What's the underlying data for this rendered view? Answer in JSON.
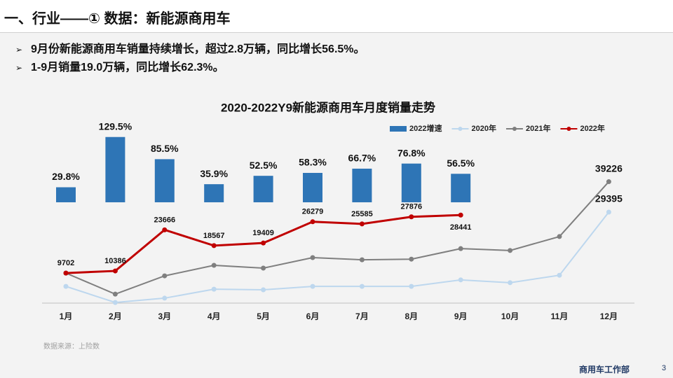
{
  "header": {
    "title": "一、行业——① 数据：新能源商用车"
  },
  "bullets": [
    "9月份新能源商用车销量持续增长，超过2.8万辆，同比增长56.5%。",
    "1-9月销量19.0万辆，同比增长62.3%。"
  ],
  "source": "数据来源：上险数",
  "footer": "商用车工作部",
  "page_number": "3",
  "chart_data": {
    "type": "bar-line",
    "title": "2020-2022Y9新能源商用车月度销量走势",
    "categories": [
      "1月",
      "2月",
      "3月",
      "4月",
      "5月",
      "6月",
      "7月",
      "8月",
      "9月",
      "10月",
      "11月",
      "12月"
    ],
    "ylim": [
      0,
      64000
    ],
    "y2lim": [
      -200,
      193
    ],
    "legend": "top",
    "series": [
      {
        "name": "2022增速",
        "type": "bar",
        "axis": "y2",
        "color": "#2e75b6",
        "values": [
          29.8,
          129.5,
          85.5,
          35.9,
          52.5,
          58.3,
          66.7,
          76.8,
          56.5,
          null,
          null,
          null
        ],
        "value_labels": [
          "29.8%",
          "129.5%",
          "85.5%",
          "35.9%",
          "52.5%",
          "58.3%",
          "66.7%",
          "76.8%",
          "56.5%",
          null,
          null,
          null
        ]
      },
      {
        "name": "2020年",
        "type": "line",
        "color": "#bdd7ee",
        "values": [
          5400,
          200,
          1600,
          4500,
          4300,
          5400,
          5400,
          5400,
          7500,
          6600,
          9000,
          29395
        ]
      },
      {
        "name": "2021年",
        "type": "line",
        "color": "#7f7f7f",
        "values": [
          9700,
          2900,
          8800,
          12200,
          11300,
          14700,
          14000,
          14200,
          17600,
          17000,
          21500,
          39226
        ]
      },
      {
        "name": "2022年",
        "type": "line",
        "color": "#c00000",
        "values": [
          9702,
          10386,
          23666,
          18567,
          19409,
          26279,
          25585,
          27876,
          28441,
          null,
          null,
          null
        ]
      }
    ],
    "labeled_points": {
      "2020年": [
        11
      ],
      "2021年": [
        11
      ],
      "2022年": [
        0,
        1,
        2,
        3,
        4,
        5,
        6,
        7,
        8
      ]
    }
  }
}
